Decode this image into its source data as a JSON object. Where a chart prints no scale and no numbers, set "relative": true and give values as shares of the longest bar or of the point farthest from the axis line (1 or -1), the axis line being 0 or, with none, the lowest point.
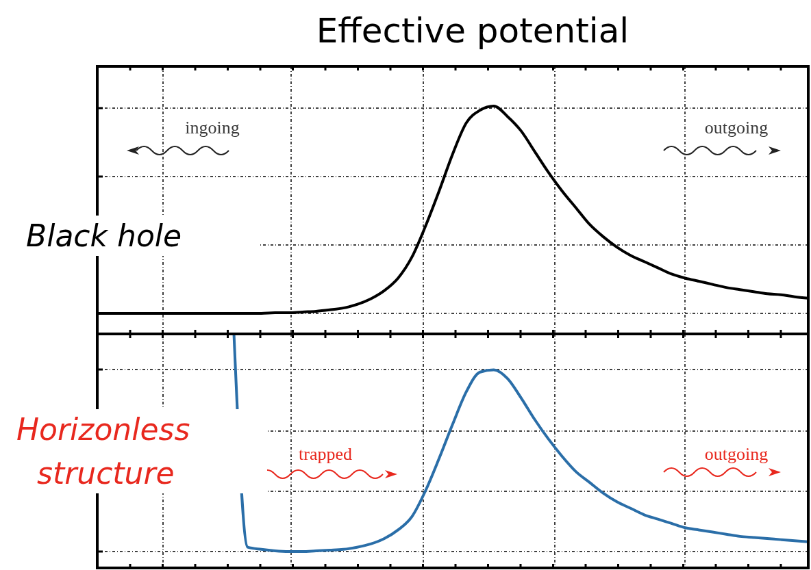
{
  "chart_data": [
    {
      "type": "line",
      "title": "Effective potential",
      "relative": true,
      "grid": true,
      "tick_labels": false,
      "categories": [
        null,
        null,
        null,
        null,
        null,
        null,
        null,
        null,
        null,
        null,
        null,
        null,
        null,
        null,
        null,
        null,
        null,
        null,
        null,
        null,
        null,
        null,
        null,
        null,
        null,
        null,
        null,
        null,
        null,
        null,
        null,
        null,
        null,
        null,
        null,
        null,
        null,
        null,
        null,
        null,
        null,
        null,
        null,
        null,
        null,
        null,
        null,
        null,
        null,
        null,
        null,
        null,
        null
      ],
      "series": [
        {
          "color": "#000000",
          "values": [
            0,
            0,
            0,
            0,
            0,
            0,
            0,
            0,
            0,
            0,
            0,
            0,
            0,
            0.003,
            0.003,
            0.007,
            0.01,
            0.017,
            0.026,
            0.043,
            0.07,
            0.11,
            0.17,
            0.27,
            0.42,
            0.59,
            0.77,
            0.92,
            0.98,
            1,
            0.95,
            0.88,
            0.78,
            0.68,
            0.59,
            0.51,
            0.43,
            0.37,
            0.32,
            0.28,
            0.25,
            0.22,
            0.19,
            0.17,
            0.155,
            0.14,
            0.125,
            0.115,
            0.105,
            0.095,
            0.09,
            0.08,
            0.073
          ]
        }
      ],
      "annotations": [
        "ingoing",
        "outgoing",
        "Black hole"
      ]
    },
    {
      "type": "line",
      "relative": true,
      "grid": true,
      "tick_labels": false,
      "categories": [
        null,
        null,
        null,
        null,
        null,
        null,
        null,
        null,
        null,
        null,
        null,
        null,
        null,
        null,
        null,
        null,
        null,
        null,
        null,
        null,
        null,
        null,
        null,
        null,
        null,
        null,
        null,
        null,
        null,
        null,
        null,
        null,
        null,
        null,
        null,
        null,
        null,
        null,
        null,
        null,
        null,
        null,
        null,
        null,
        null,
        null,
        null,
        null,
        null,
        null,
        null,
        null,
        null
      ],
      "series": [
        {
          "color": "#2a6ea8",
          "values": [
            null,
            null,
            null,
            null,
            null,
            null,
            null,
            null,
            null,
            null,
            1,
            0.02,
            0.01,
            0.003,
            0,
            0,
            0.003,
            0.006,
            0.01,
            0.02,
            0.035,
            0.06,
            0.1,
            0.16,
            0.28,
            0.43,
            0.59,
            0.74,
            0.83,
            0.84,
            0.8,
            0.71,
            0.61,
            0.52,
            0.44,
            0.37,
            0.32,
            0.27,
            0.23,
            0.2,
            0.17,
            0.15,
            0.13,
            0.11,
            0.1,
            0.09,
            0.08,
            0.07,
            0.065,
            0.06,
            0.055,
            0.05,
            0.045
          ]
        }
      ],
      "annotations": [
        "trapped",
        "outgoing",
        "Horizonless structure"
      ]
    }
  ]
}
